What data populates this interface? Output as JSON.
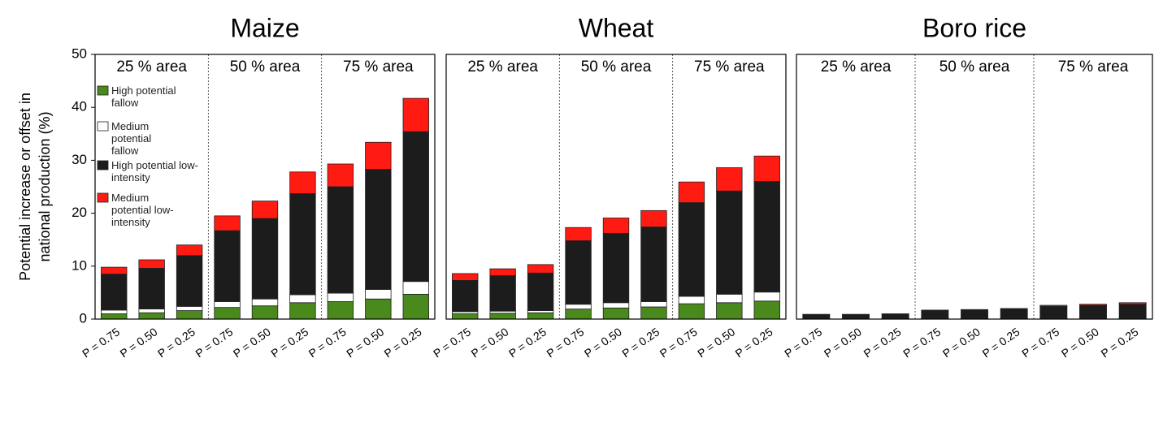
{
  "chart_data": [
    {
      "type": "stacked_bar",
      "title": "Maize",
      "ylabel": [
        "Potential increase or offset in",
        "national production (%)"
      ],
      "groups": [
        "25 % area",
        "50 % area",
        "75 % area"
      ],
      "categories": [
        "P = 0.75",
        "P = 0.50",
        "P = 0.25",
        "P = 0.75",
        "P = 0.50",
        "P = 0.25",
        "P = 0.75",
        "P = 0.50",
        "P = 0.25"
      ],
      "ylim": [
        0,
        50
      ],
      "yticks": [
        0,
        10,
        20,
        30,
        40,
        50
      ],
      "legend": "upper left",
      "series": [
        {
          "name": "High potential fallow",
          "color": "#4a8a1c",
          "values": [
            1.0,
            1.2,
            1.6,
            2.2,
            2.5,
            3.1,
            3.3,
            3.8,
            4.7
          ]
        },
        {
          "name": "Medium potential fallow",
          "color": "#ffffff",
          "values": [
            0.7,
            0.7,
            0.8,
            1.1,
            1.3,
            1.5,
            1.6,
            1.8,
            2.4
          ]
        },
        {
          "name": "High potential low-intensity",
          "color": "#1c1c1c",
          "values": [
            6.8,
            7.7,
            9.6,
            13.4,
            15.2,
            19.1,
            20.1,
            22.7,
            28.3
          ]
        },
        {
          "name": "Medium potential low-intensity",
          "color": "#ff1a12",
          "values": [
            1.3,
            1.6,
            2.0,
            2.8,
            3.3,
            4.1,
            4.3,
            5.1,
            6.3
          ]
        }
      ]
    },
    {
      "type": "stacked_bar",
      "title": "Wheat",
      "groups": [
        "25 % area",
        "50 % area",
        "75 % area"
      ],
      "categories": [
        "P = 0.75",
        "P = 0.50",
        "P = 0.25",
        "P = 0.75",
        "P = 0.50",
        "P = 0.25",
        "P = 0.75",
        "P = 0.50",
        "P = 0.25"
      ],
      "ylim": [
        0,
        50
      ],
      "series": [
        {
          "color": "#4a8a1c",
          "values": [
            1.0,
            1.1,
            1.2,
            1.9,
            2.1,
            2.3,
            2.9,
            3.1,
            3.4
          ]
        },
        {
          "color": "#ffffff",
          "values": [
            0.4,
            0.4,
            0.4,
            0.9,
            1.0,
            1.0,
            1.4,
            1.6,
            1.7
          ]
        },
        {
          "color": "#1c1c1c",
          "values": [
            5.9,
            6.7,
            7.1,
            12.0,
            13.1,
            14.1,
            17.7,
            19.5,
            20.9
          ]
        },
        {
          "color": "#ff1a12",
          "values": [
            1.3,
            1.3,
            1.6,
            2.5,
            2.9,
            3.1,
            3.9,
            4.4,
            4.8
          ]
        }
      ]
    },
    {
      "type": "stacked_bar",
      "title": "Boro rice",
      "groups": [
        "25 % area",
        "50 % area",
        "75 % area"
      ],
      "categories": [
        "P = 0.75",
        "P = 0.50",
        "P = 0.25",
        "P = 0.75",
        "P = 0.50",
        "P = 0.25",
        "P = 0.75",
        "P = 0.50",
        "P = 0.25"
      ],
      "ylim": [
        0,
        50
      ],
      "series": [
        {
          "color": "#4a8a1c",
          "values": [
            0.1,
            0.1,
            0.1,
            0.1,
            0.1,
            0.1,
            0.1,
            0.1,
            0.1
          ]
        },
        {
          "color": "#ffffff",
          "values": [
            0.1,
            0.1,
            0.1,
            0.1,
            0.1,
            0.1,
            0.1,
            0.1,
            0.1
          ]
        },
        {
          "color": "#1c1c1c",
          "values": [
            0.65,
            0.65,
            0.75,
            1.4,
            1.5,
            1.7,
            2.2,
            2.4,
            2.6
          ]
        },
        {
          "color": "#ff1a12",
          "values": [
            0.05,
            0.05,
            0.05,
            0.1,
            0.1,
            0.1,
            0.2,
            0.2,
            0.3
          ]
        }
      ]
    }
  ]
}
